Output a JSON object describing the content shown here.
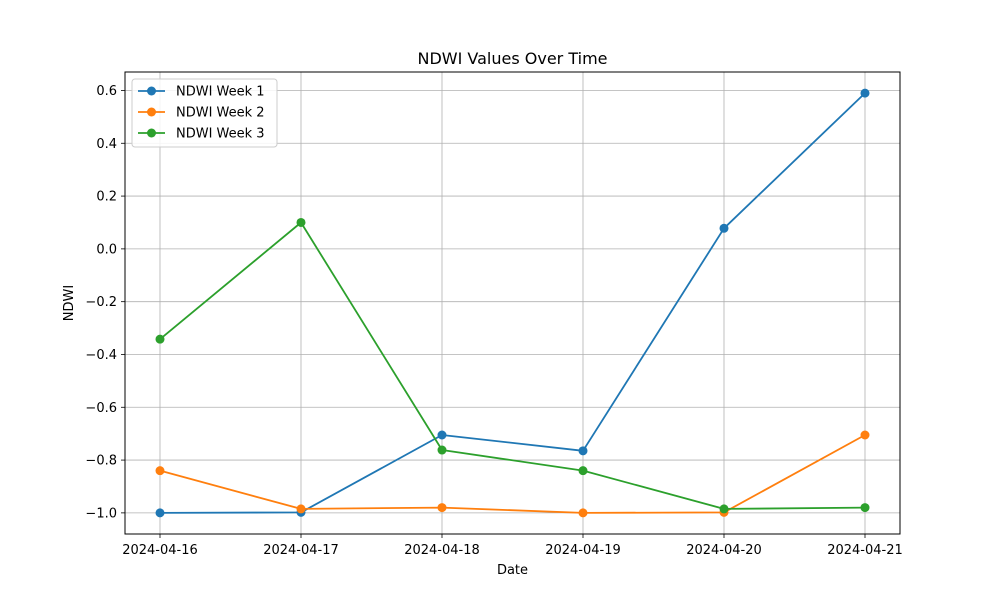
{
  "chart_data": {
    "type": "line",
    "title": "NDWI Values Over Time",
    "xlabel": "Date",
    "ylabel": "NDWI",
    "x": [
      "2024-04-16",
      "2024-04-17",
      "2024-04-18",
      "2024-04-19",
      "2024-04-20",
      "2024-04-21"
    ],
    "ylim": [
      -1.08,
      0.67
    ],
    "yticks": [
      -1.0,
      -0.8,
      -0.6,
      -0.4,
      -0.2,
      0.0,
      0.2,
      0.4,
      0.6
    ],
    "ytick_labels": [
      "−1.0",
      "−0.8",
      "−0.6",
      "−0.4",
      "−0.2",
      "0.0",
      "0.2",
      "0.4",
      "0.6"
    ],
    "grid": true,
    "legend_position": "upper-left",
    "series": [
      {
        "name": "NDWI Week 1",
        "color": "#1f77b4",
        "values": [
          -1.0,
          -0.998,
          -0.705,
          -0.765,
          0.078,
          0.59
        ]
      },
      {
        "name": "NDWI Week 2",
        "color": "#ff7f0e",
        "values": [
          -0.84,
          -0.985,
          -0.98,
          -1.0,
          -0.998,
          -0.705
        ]
      },
      {
        "name": "NDWI Week 3",
        "color": "#2ca02c",
        "values": [
          -0.342,
          0.1,
          -0.762,
          -0.84,
          -0.985,
          -0.98
        ]
      }
    ]
  }
}
